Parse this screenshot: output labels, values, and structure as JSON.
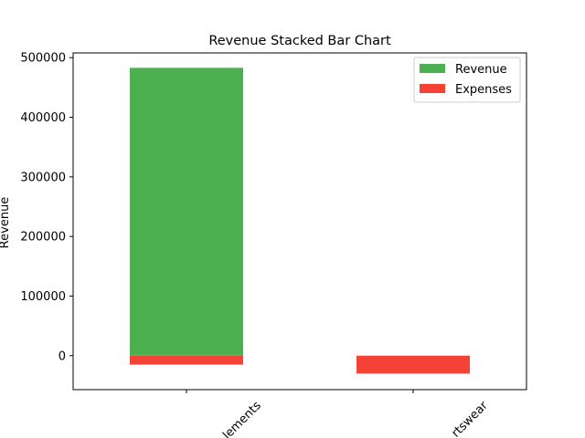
{
  "chart_data": {
    "type": "bar",
    "stacked": true,
    "title": "Revenue Stacked Bar Chart",
    "xlabel": "",
    "ylabel": "Revenue",
    "categories": [
      "Supplements",
      "Sportswear"
    ],
    "category_labels_visible": [
      "lements",
      "rtswear"
    ],
    "series": [
      {
        "name": "Revenue",
        "values": [
          483000,
          0
        ],
        "color": "#4caf50"
      },
      {
        "name": "Expenses",
        "values": [
          -15000,
          -30000
        ],
        "color": "#f44336"
      }
    ],
    "ylim": [
      -57000,
      508000
    ],
    "yticks": [
      0,
      100000,
      200000,
      300000,
      400000,
      500000
    ],
    "ytick_labels": [
      "0",
      "100000",
      "200000",
      "300000",
      "400000",
      "500000"
    ],
    "grid": false,
    "legend": "upper-right"
  }
}
